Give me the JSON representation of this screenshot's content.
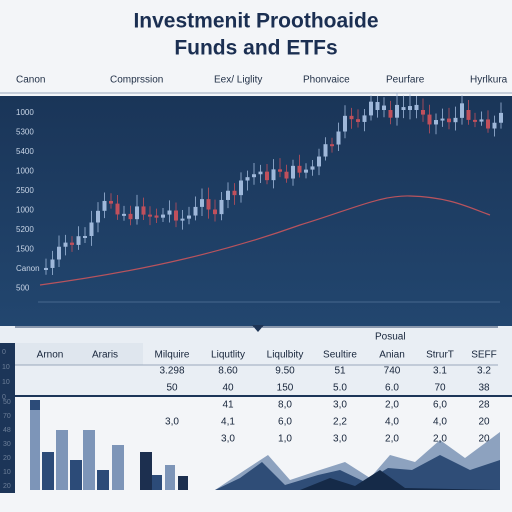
{
  "header": {
    "title_lines": [
      "Investmenit Proothoaide",
      "Funds and ETFs"
    ]
  },
  "nav": [
    "Canon",
    "Comprssion",
    "Eex/ Liglity",
    "Phonvaice",
    "Peurfare",
    "Hyrlkura"
  ],
  "chart": {
    "y_labels": [
      "1000",
      "5300",
      "5400",
      "1000",
      "2500",
      "1000",
      "5200",
      "1500",
      "Canon",
      "500"
    ]
  },
  "table": {
    "caption": "Posual",
    "header": [
      "Arnon",
      "Araris",
      "Milquire",
      "Liqutlity",
      "Liqulbity",
      "Seultire",
      "Anian",
      "StrurT",
      "SEFF"
    ],
    "rows": [
      [
        "3.298",
        "8.60",
        "9.50",
        "51",
        "740",
        "3.1",
        "3.2"
      ],
      [
        "50",
        "40",
        "150",
        "5.0",
        "6.0",
        "70",
        "38"
      ]
    ],
    "side_labels": [
      "0",
      "10",
      "10",
      "0"
    ]
  },
  "lower": {
    "y_labels": [
      "50",
      "70",
      "48",
      "30",
      "20",
      "10",
      "20"
    ],
    "rows": [
      [
        "41",
        "8,0",
        "3,0",
        "2,0",
        "6,0",
        "28"
      ],
      [
        "3,0",
        "4,1",
        "6,0",
        "2,2",
        "4,0",
        "4,0",
        "20"
      ],
      [
        "3,0",
        "1,0",
        "3,0",
        "2,0",
        "2,0",
        "20"
      ]
    ]
  }
}
